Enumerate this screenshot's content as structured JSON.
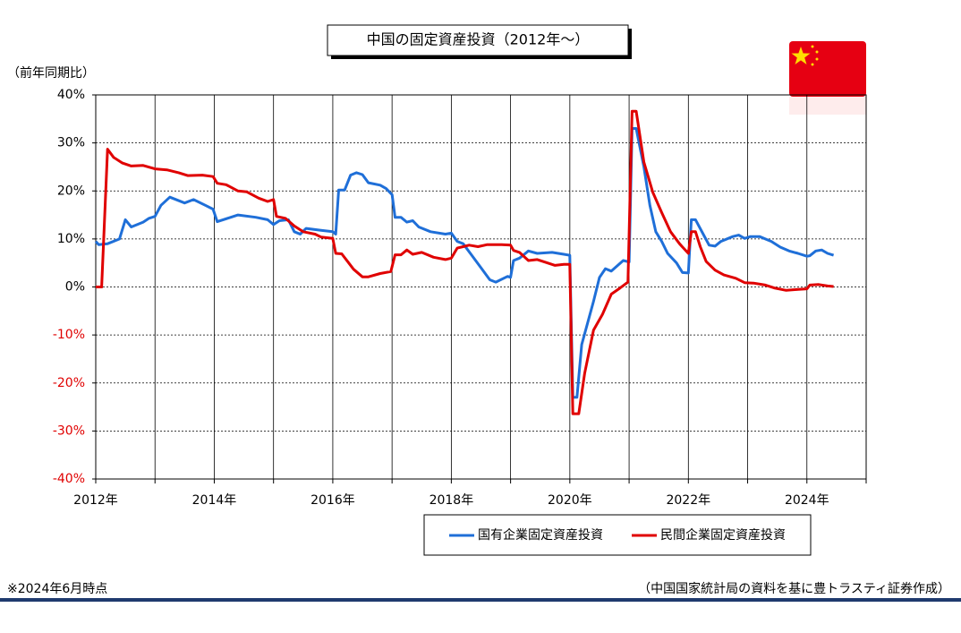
{
  "chart_data": {
    "type": "line",
    "title": "中国の固定資産投資（2012年～）",
    "y_axis_label": "（前年同期比）",
    "note": "※2024年6月時点",
    "source": "（中国国家統計局の資料を基に豊トラスティ証券作成）",
    "xlim": [
      2012,
      2025
    ],
    "xticks": [
      {
        "value": 2012,
        "label": "2012年"
      },
      {
        "value": 2014,
        "label": "2014年"
      },
      {
        "value": 2016,
        "label": "2016年"
      },
      {
        "value": 2018,
        "label": "2018年"
      },
      {
        "value": 2020,
        "label": "2020年"
      },
      {
        "value": 2022,
        "label": "2022年"
      },
      {
        "value": 2024,
        "label": "2024年"
      }
    ],
    "xminor": [
      2013,
      2015,
      2017,
      2019,
      2021,
      2023,
      2025
    ],
    "ylim": [
      -40,
      40
    ],
    "yticks": [
      {
        "value": -40,
        "label": "-40%"
      },
      {
        "value": -30,
        "label": "-30%"
      },
      {
        "value": -20,
        "label": "-20%"
      },
      {
        "value": -10,
        "label": "-10%"
      },
      {
        "value": 0,
        "label": "0%"
      },
      {
        "value": 10,
        "label": "10%"
      },
      {
        "value": 20,
        "label": "20%"
      },
      {
        "value": 30,
        "label": "30%"
      },
      {
        "value": 40,
        "label": "40%"
      }
    ],
    "negative_tick_color": "#e00000",
    "grid": true,
    "legend": "bottom",
    "series": [
      {
        "name": "国有企業固定資産投資",
        "color": "#1f6fd8",
        "x": [
          2012.0,
          2012.05,
          2012.2,
          2012.4,
          2012.5,
          2012.6,
          2012.8,
          2012.9,
          2013.0,
          2013.1,
          2013.25,
          2013.5,
          2013.65,
          2013.85,
          2013.98,
          2014.05,
          2014.25,
          2014.4,
          2014.7,
          2014.9,
          2015.0,
          2015.1,
          2015.25,
          2015.35,
          2015.45,
          2015.55,
          2015.8,
          2016.0,
          2016.05,
          2016.1,
          2016.2,
          2016.3,
          2016.4,
          2016.5,
          2016.6,
          2016.8,
          2016.9,
          2017.0,
          2017.05,
          2017.15,
          2017.25,
          2017.35,
          2017.45,
          2017.65,
          2017.9,
          2018.0,
          2018.1,
          2018.2,
          2018.35,
          2018.5,
          2018.65,
          2018.75,
          2018.95,
          2019.0,
          2019.05,
          2019.15,
          2019.3,
          2019.45,
          2019.7,
          2019.9,
          2020.0,
          2020.05,
          2020.12,
          2020.2,
          2020.4,
          2020.5,
          2020.6,
          2020.7,
          2020.9,
          2021.0,
          2021.05,
          2021.12,
          2021.25,
          2021.35,
          2021.45,
          2021.55,
          2021.65,
          2021.8,
          2021.9,
          2022.0,
          2022.05,
          2022.12,
          2022.25,
          2022.35,
          2022.45,
          2022.55,
          2022.75,
          2022.85,
          2022.95,
          2023.05,
          2023.2,
          2023.4,
          2023.55,
          2023.7,
          2023.85,
          2024.0,
          2024.05,
          2024.15,
          2024.25,
          2024.35,
          2024.45
        ],
        "values": [
          9.5,
          8.8,
          9,
          10,
          14,
          12.5,
          13.5,
          14.3,
          14.7,
          17,
          18.7,
          17.5,
          18.2,
          17,
          16.2,
          13.6,
          14.4,
          15,
          14.5,
          14,
          13,
          13.8,
          14,
          11.5,
          11,
          12.2,
          11.8,
          11.5,
          11,
          20.2,
          20.2,
          23.3,
          23.8,
          23.4,
          21.7,
          21.2,
          20.5,
          19.2,
          14.5,
          14.5,
          13.5,
          13.8,
          12.5,
          11.5,
          11,
          11.2,
          9.5,
          9,
          6.5,
          4,
          1.5,
          1,
          2.2,
          2,
          5.5,
          6,
          7.5,
          7,
          7.2,
          6.8,
          6.6,
          -23,
          -23,
          -12,
          -3,
          2,
          3.8,
          3.3,
          5.5,
          5.2,
          33,
          33,
          25,
          17,
          11.5,
          9.5,
          7,
          5,
          3,
          2.9,
          14,
          14,
          11,
          8.7,
          8.5,
          9.5,
          10.5,
          10.8,
          10.1,
          10.5,
          10.5,
          9.5,
          8.3,
          7.5,
          7,
          6.4,
          6.5,
          7.5,
          7.7,
          7,
          6.6
        ]
      },
      {
        "name": "民間企業固定資産投資",
        "color": "#e00000",
        "x": [
          2012.0,
          2012.1,
          2012.2,
          2012.3,
          2012.45,
          2012.6,
          2012.8,
          2013.0,
          2013.2,
          2013.4,
          2013.55,
          2013.8,
          2013.98,
          2014.05,
          2014.2,
          2014.4,
          2014.55,
          2014.75,
          2014.9,
          2015.0,
          2015.05,
          2015.2,
          2015.35,
          2015.5,
          2015.7,
          2015.8,
          2016.0,
          2016.05,
          2016.15,
          2016.25,
          2016.35,
          2016.5,
          2016.6,
          2016.8,
          2016.98,
          2017.05,
          2017.15,
          2017.25,
          2017.35,
          2017.5,
          2017.7,
          2017.9,
          2018.0,
          2018.1,
          2018.2,
          2018.3,
          2018.45,
          2018.6,
          2018.85,
          2019.0,
          2019.05,
          2019.15,
          2019.3,
          2019.45,
          2019.6,
          2019.75,
          2019.9,
          2020.0,
          2020.05,
          2020.15,
          2020.25,
          2020.4,
          2020.55,
          2020.7,
          2020.85,
          2020.98,
          2021.05,
          2021.12,
          2021.25,
          2021.4,
          2021.55,
          2021.7,
          2021.85,
          2022.0,
          2022.05,
          2022.12,
          2022.2,
          2022.3,
          2022.45,
          2022.6,
          2022.8,
          2022.95,
          2023.1,
          2023.3,
          2023.45,
          2023.65,
          2023.85,
          2024.0,
          2024.05,
          2024.2,
          2024.35,
          2024.45
        ],
        "values": [
          0,
          0,
          28.7,
          27,
          25.8,
          25.2,
          25.3,
          24.6,
          24.4,
          23.8,
          23.2,
          23.3,
          23,
          21.6,
          21.3,
          20,
          19.8,
          18.5,
          17.8,
          18.2,
          14.7,
          14.3,
          12.7,
          11.5,
          11,
          10.4,
          10.1,
          7,
          6.9,
          5.3,
          3.7,
          2.1,
          2.1,
          2.8,
          3.2,
          6.7,
          6.7,
          7.7,
          6.8,
          7.2,
          6.2,
          5.7,
          6,
          8.1,
          8.4,
          8.7,
          8.4,
          8.8,
          8.8,
          8.7,
          7.6,
          7.2,
          5.5,
          5.7,
          5.1,
          4.5,
          4.7,
          4.7,
          -26.4,
          -26.4,
          -18,
          -9,
          -5.7,
          -1.5,
          -0.2,
          1,
          36.6,
          36.6,
          26,
          19.7,
          15.5,
          11.5,
          9,
          7,
          11.5,
          11.5,
          8.4,
          5.3,
          3.5,
          2.5,
          1.8,
          0.9,
          0.8,
          0.4,
          -0.2,
          -0.7,
          -0.5,
          -0.4,
          0.4,
          0.5,
          0.2,
          0.1
        ]
      }
    ]
  }
}
